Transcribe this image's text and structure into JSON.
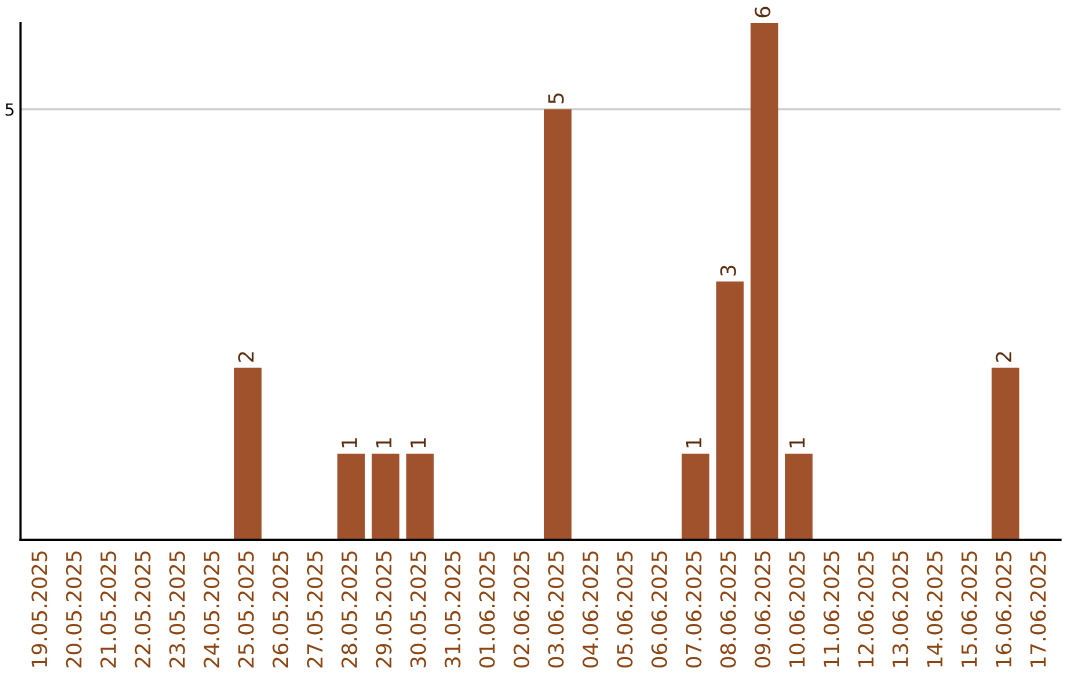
{
  "chart_data": {
    "type": "bar",
    "categories": [
      "19.05.2025",
      "20.05.2025",
      "21.05.2025",
      "22.05.2025",
      "23.05.2025",
      "24.05.2025",
      "25.05.2025",
      "26.05.2025",
      "27.05.2025",
      "28.05.2025",
      "29.05.2025",
      "30.05.2025",
      "31.05.2025",
      "01.06.2025",
      "02.06.2025",
      "03.06.2025",
      "04.06.2025",
      "05.06.2025",
      "06.06.2025",
      "07.06.2025",
      "08.06.2025",
      "09.06.2025",
      "10.06.2025",
      "11.06.2025",
      "12.06.2025",
      "13.06.2025",
      "14.06.2025",
      "15.06.2025",
      "16.06.2025",
      "17.06.2025"
    ],
    "values": [
      0,
      0,
      0,
      0,
      0,
      0,
      2,
      0,
      0,
      1,
      1,
      1,
      0,
      0,
      0,
      5,
      0,
      0,
      0,
      1,
      3,
      6,
      1,
      0,
      0,
      0,
      0,
      0,
      2,
      0
    ],
    "value_labels": [
      null,
      null,
      null,
      null,
      null,
      null,
      "2",
      null,
      null,
      "1",
      "1",
      "1",
      null,
      null,
      null,
      "5",
      null,
      null,
      null,
      "1",
      "3",
      "6",
      "1",
      null,
      null,
      null,
      null,
      null,
      "2",
      null
    ],
    "color": "#a0522d",
    "ylim": [
      0,
      6
    ],
    "yticks": [
      5
    ],
    "grid": "y"
  }
}
